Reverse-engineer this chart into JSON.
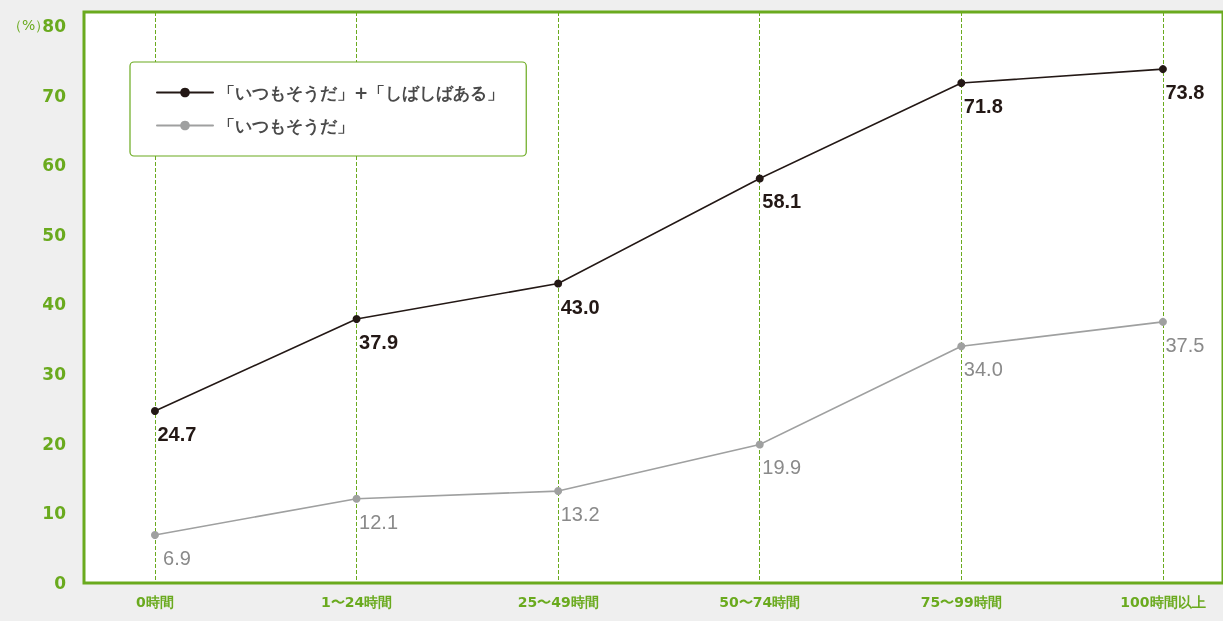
{
  "chart_data": {
    "type": "line",
    "ylabel": "（%）",
    "categories": [
      "0時間",
      "1〜24時間",
      "25〜49時間",
      "50〜74時間",
      "75〜99時間",
      "100時間以上"
    ],
    "series": [
      {
        "name": "「いつもそうだ」+「しばしばある」",
        "color": "#231815",
        "values": [
          24.7,
          37.9,
          43.0,
          58.1,
          71.8,
          73.8
        ],
        "value_labels": [
          "24.7",
          "37.9",
          "43.0",
          "58.1",
          "71.8",
          "73.8"
        ]
      },
      {
        "name": "「いつもそうだ」",
        "color": "#9fa0a0",
        "values": [
          6.9,
          12.1,
          13.2,
          19.9,
          34.0,
          37.5
        ],
        "value_labels": [
          "6.9",
          "12.1",
          "13.2",
          "19.9",
          "34.0",
          "37.5"
        ]
      }
    ],
    "ylim": [
      0,
      82
    ],
    "yticks": [
      0,
      10,
      20,
      30,
      40,
      50,
      60,
      70,
      80
    ],
    "grid": "x",
    "legend": "top left",
    "marker": "circle",
    "line_style": "solid"
  }
}
